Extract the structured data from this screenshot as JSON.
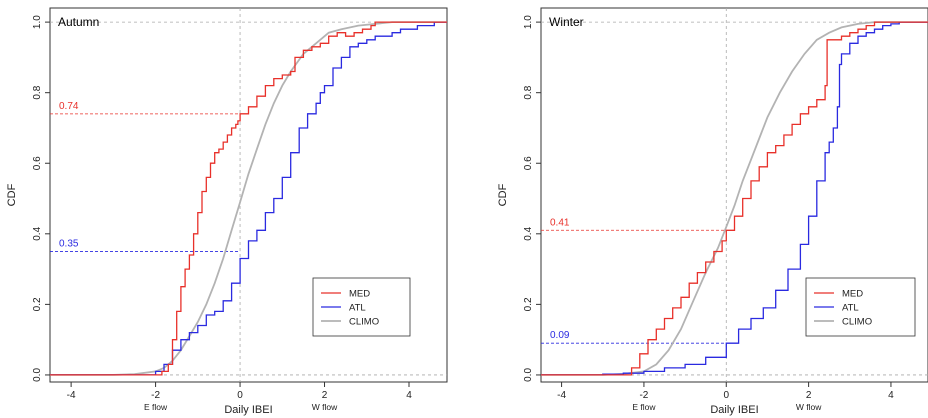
{
  "chart_data": [
    {
      "type": "line",
      "title": "Autumn",
      "xlabel": "Daily IBEI",
      "ylabel": "CDF",
      "xlim": [
        -4.5,
        4.9
      ],
      "ylim": [
        -0.02,
        1.04
      ],
      "xticks": [
        -4,
        -2,
        0,
        2,
        4
      ],
      "yticks": [
        "0.0",
        "0.2",
        "0.4",
        "0.6",
        "0.8",
        "1.0"
      ],
      "x_sublabels": [
        {
          "x": -2,
          "text": "E flow"
        },
        {
          "x": 2,
          "text": "W flow"
        }
      ],
      "legend": {
        "position": "bottom-right",
        "entries": [
          "MED",
          "ATL",
          "CLIMO"
        ]
      },
      "reference_lines": [
        {
          "value": "0.74",
          "y": 0.74,
          "color": "#e8302a"
        },
        {
          "value": "0.35",
          "y": 0.35,
          "color": "#2a2ae0"
        }
      ],
      "series": [
        {
          "name": "MED",
          "color": "#e8302a",
          "x": [
            -4.5,
            -1.9,
            -1.85,
            -1.7,
            -1.6,
            -1.5,
            -1.4,
            -1.3,
            -1.2,
            -1.1,
            -1.0,
            -0.9,
            -0.8,
            -0.7,
            -0.6,
            -0.5,
            -0.4,
            -0.3,
            -0.2,
            -0.1,
            -0.05,
            0.0,
            0.2,
            0.4,
            0.6,
            0.8,
            1.0,
            1.2,
            1.3,
            1.5,
            1.7,
            1.9,
            2.1,
            2.3,
            2.5,
            2.7,
            2.9,
            3.1,
            3.2,
            3.4,
            3.6,
            3.8,
            4.5,
            4.9
          ],
          "y": [
            0.0,
            0.0,
            0.01,
            0.03,
            0.1,
            0.18,
            0.25,
            0.3,
            0.34,
            0.4,
            0.46,
            0.52,
            0.56,
            0.6,
            0.63,
            0.64,
            0.66,
            0.68,
            0.7,
            0.71,
            0.72,
            0.74,
            0.76,
            0.79,
            0.82,
            0.84,
            0.85,
            0.86,
            0.9,
            0.92,
            0.93,
            0.94,
            0.96,
            0.97,
            0.96,
            0.97,
            0.98,
            0.99,
            1.0,
            1.0,
            1.0,
            1.0,
            1.0,
            1.0
          ]
        },
        {
          "name": "ATL",
          "color": "#2a2ae0",
          "x": [
            -4.5,
            -3.1,
            -2.0,
            -1.8,
            -1.6,
            -1.4,
            -1.2,
            -1.0,
            -0.8,
            -0.6,
            -0.4,
            -0.2,
            0.0,
            0.2,
            0.4,
            0.6,
            0.8,
            1.0,
            1.2,
            1.4,
            1.6,
            1.8,
            1.9,
            2.0,
            2.2,
            2.4,
            2.6,
            2.8,
            3.0,
            3.2,
            3.4,
            3.6,
            3.8,
            4.0,
            4.2,
            4.4,
            4.6,
            4.9
          ],
          "y": [
            0.0,
            0.0,
            0.01,
            0.03,
            0.07,
            0.1,
            0.12,
            0.14,
            0.17,
            0.18,
            0.21,
            0.26,
            0.33,
            0.38,
            0.41,
            0.46,
            0.5,
            0.56,
            0.63,
            0.7,
            0.74,
            0.77,
            0.8,
            0.82,
            0.87,
            0.9,
            0.93,
            0.94,
            0.95,
            0.96,
            0.96,
            0.97,
            0.98,
            0.98,
            0.99,
            0.99,
            1.0,
            1.0
          ]
        },
        {
          "name": "CLIMO",
          "color": "#b3b3b3",
          "x": [
            -4.5,
            -3.0,
            -2.5,
            -2.0,
            -1.8,
            -1.6,
            -1.4,
            -1.2,
            -1.0,
            -0.8,
            -0.6,
            -0.4,
            -0.2,
            0.0,
            0.2,
            0.4,
            0.6,
            0.8,
            1.0,
            1.2,
            1.5,
            1.8,
            2.1,
            2.4,
            2.8,
            3.2,
            3.6,
            4.0,
            4.9
          ],
          "y": [
            0.0,
            0.0,
            0.002,
            0.01,
            0.02,
            0.04,
            0.07,
            0.11,
            0.15,
            0.2,
            0.26,
            0.33,
            0.41,
            0.49,
            0.57,
            0.64,
            0.71,
            0.77,
            0.82,
            0.86,
            0.91,
            0.94,
            0.97,
            0.98,
            0.99,
            0.995,
            1.0,
            1.0,
            1.0
          ]
        }
      ]
    },
    {
      "type": "line",
      "title": "Winter",
      "xlabel": "Daily IBEI",
      "ylabel": "CDF",
      "xlim": [
        -4.5,
        4.9
      ],
      "ylim": [
        -0.02,
        1.04
      ],
      "xticks": [
        -4,
        -2,
        0,
        2,
        4
      ],
      "yticks": [
        "0.0",
        "0.2",
        "0.4",
        "0.6",
        "0.8",
        "1.0"
      ],
      "x_sublabels": [
        {
          "x": -2,
          "text": "E flow"
        },
        {
          "x": 2,
          "text": "W flow"
        }
      ],
      "legend": {
        "position": "bottom-right",
        "entries": [
          "MED",
          "ATL",
          "CLIMO"
        ]
      },
      "reference_lines": [
        {
          "value": "0.41",
          "y": 0.41,
          "color": "#e8302a"
        },
        {
          "value": "0.09",
          "y": 0.09,
          "color": "#2a2ae0"
        }
      ],
      "series": [
        {
          "name": "MED",
          "color": "#e8302a",
          "x": [
            -4.5,
            -2.6,
            -2.3,
            -2.1,
            -1.9,
            -1.7,
            -1.5,
            -1.3,
            -1.1,
            -0.9,
            -0.7,
            -0.5,
            -0.3,
            -0.1,
            0.0,
            0.2,
            0.4,
            0.6,
            0.8,
            1.0,
            1.2,
            1.4,
            1.6,
            1.8,
            2.0,
            2.2,
            2.4,
            2.45,
            2.6,
            2.8,
            3.0,
            3.2,
            3.4,
            3.6,
            3.8,
            4.0,
            4.9
          ],
          "y": [
            0.0,
            0.0,
            0.02,
            0.06,
            0.1,
            0.13,
            0.16,
            0.19,
            0.22,
            0.26,
            0.29,
            0.32,
            0.35,
            0.38,
            0.41,
            0.45,
            0.5,
            0.55,
            0.59,
            0.63,
            0.65,
            0.68,
            0.71,
            0.74,
            0.76,
            0.78,
            0.82,
            0.95,
            0.95,
            0.96,
            0.97,
            0.98,
            0.99,
            1.0,
            1.0,
            1.0,
            1.0
          ]
        },
        {
          "name": "ATL",
          "color": "#2a2ae0",
          "x": [
            -4.5,
            -3.5,
            -3.0,
            -2.5,
            -2.0,
            -1.5,
            -1.0,
            -0.5,
            0.0,
            0.3,
            0.6,
            0.9,
            1.2,
            1.5,
            1.8,
            2.0,
            2.2,
            2.4,
            2.5,
            2.6,
            2.7,
            2.75,
            2.8,
            3.0,
            3.2,
            3.4,
            3.6,
            3.8,
            4.0,
            4.2,
            4.4,
            4.9
          ],
          "y": [
            0.0,
            0.0,
            0.002,
            0.005,
            0.01,
            0.02,
            0.03,
            0.05,
            0.09,
            0.13,
            0.16,
            0.19,
            0.24,
            0.3,
            0.37,
            0.45,
            0.55,
            0.63,
            0.66,
            0.7,
            0.76,
            0.88,
            0.91,
            0.94,
            0.96,
            0.97,
            0.98,
            0.99,
            0.995,
            1.0,
            1.0,
            1.0
          ]
        },
        {
          "name": "CLIMO",
          "color": "#b3b3b3",
          "x": [
            -4.5,
            -3.0,
            -2.5,
            -2.0,
            -1.7,
            -1.4,
            -1.1,
            -0.8,
            -0.5,
            -0.2,
            0.0,
            0.2,
            0.4,
            0.6,
            0.8,
            1.0,
            1.3,
            1.6,
            1.9,
            2.2,
            2.5,
            2.8,
            3.2,
            3.6,
            4.0,
            4.9
          ],
          "y": [
            0.0,
            0.0,
            0.003,
            0.01,
            0.03,
            0.07,
            0.13,
            0.21,
            0.29,
            0.36,
            0.42,
            0.48,
            0.55,
            0.61,
            0.67,
            0.73,
            0.8,
            0.86,
            0.91,
            0.95,
            0.97,
            0.985,
            0.995,
            1.0,
            1.0,
            1.0
          ]
        }
      ]
    }
  ]
}
